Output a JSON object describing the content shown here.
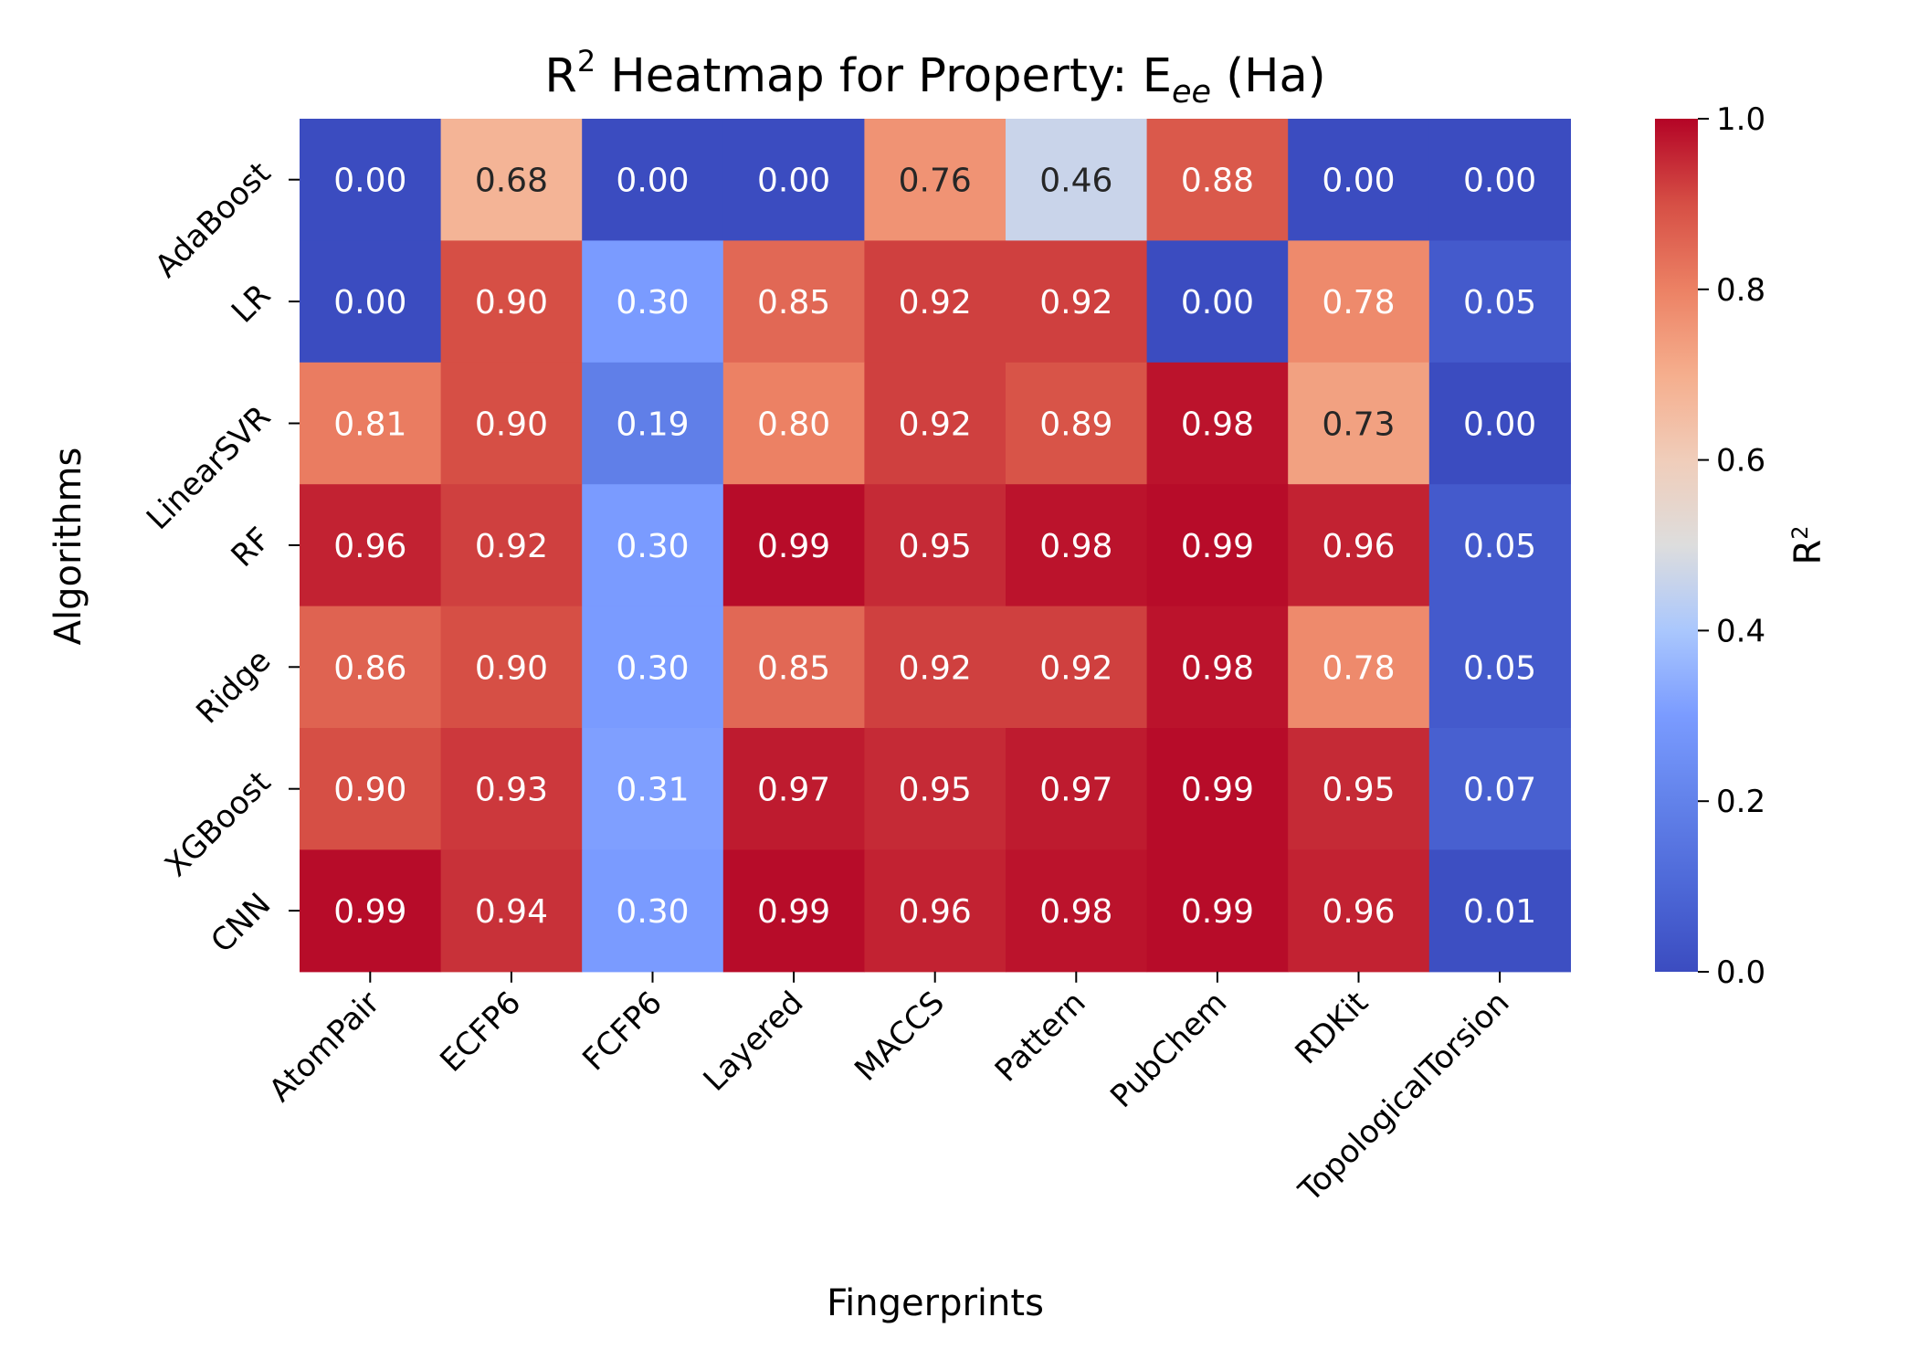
{
  "chart_data": {
    "type": "heatmap",
    "title_main": "R",
    "title_sup": "2",
    "title_mid": " Heatmap for Property: E",
    "title_sub": "ee",
    "title_end": " (Ha)",
    "xlabel": "Fingerprints",
    "ylabel": "Algorithms",
    "colorbar_label_main": "R",
    "colorbar_label_sup": "2",
    "colorbar_ticks": [
      "0.0",
      "0.2",
      "0.4",
      "0.6",
      "0.8",
      "1.0"
    ],
    "colorbar_tick_values": [
      0.0,
      0.2,
      0.4,
      0.6,
      0.8,
      1.0
    ],
    "value_range": [
      0,
      1
    ],
    "colormap": "coolwarm",
    "colors": {
      "low": "#3b4cc0",
      "mid": "#dddddd",
      "high": "#b40426"
    },
    "x_categories": [
      "AtomPair",
      "ECFP6",
      "FCFP6",
      "Layered",
      "MACCS",
      "Pattern",
      "PubChem",
      "RDKit",
      "TopologicalTorsion"
    ],
    "y_categories": [
      "AdaBoost",
      "LR",
      "LinearSVR",
      "RF",
      "Ridge",
      "XGBoost",
      "CNN"
    ],
    "values": [
      [
        0.0,
        0.68,
        0.0,
        0.0,
        0.76,
        0.46,
        0.88,
        0.0,
        0.0
      ],
      [
        0.0,
        0.9,
        0.3,
        0.85,
        0.92,
        0.92,
        0.0,
        0.78,
        0.05
      ],
      [
        0.81,
        0.9,
        0.19,
        0.8,
        0.92,
        0.89,
        0.98,
        0.73,
        0.0
      ],
      [
        0.96,
        0.92,
        0.3,
        0.99,
        0.95,
        0.98,
        0.99,
        0.96,
        0.05
      ],
      [
        0.86,
        0.9,
        0.3,
        0.85,
        0.92,
        0.92,
        0.98,
        0.78,
        0.05
      ],
      [
        0.9,
        0.93,
        0.31,
        0.97,
        0.95,
        0.97,
        0.99,
        0.95,
        0.07
      ],
      [
        0.99,
        0.94,
        0.3,
        0.99,
        0.96,
        0.98,
        0.99,
        0.96,
        0.01
      ]
    ],
    "labels": [
      [
        "0.00",
        "0.68",
        "0.00",
        "0.00",
        "0.76",
        "0.46",
        "0.88",
        "0.00",
        "0.00"
      ],
      [
        "0.00",
        "0.90",
        "0.30",
        "0.85",
        "0.92",
        "0.92",
        "0.00",
        "0.78",
        "0.05"
      ],
      [
        "0.81",
        "0.90",
        "0.19",
        "0.80",
        "0.92",
        "0.89",
        "0.98",
        "0.73",
        "0.00"
      ],
      [
        "0.96",
        "0.92",
        "0.30",
        "0.99",
        "0.95",
        "0.98",
        "0.99",
        "0.96",
        "0.05"
      ],
      [
        "0.86",
        "0.90",
        "0.30",
        "0.85",
        "0.92",
        "0.92",
        "0.98",
        "0.78",
        "0.05"
      ],
      [
        "0.90",
        "0.93",
        "0.31",
        "0.97",
        "0.95",
        "0.97",
        "0.99",
        "0.95",
        "0.07"
      ],
      [
        "0.99",
        "0.94",
        "0.30",
        "0.99",
        "0.96",
        "0.98",
        "0.99",
        "0.96",
        "0.01"
      ]
    ]
  }
}
